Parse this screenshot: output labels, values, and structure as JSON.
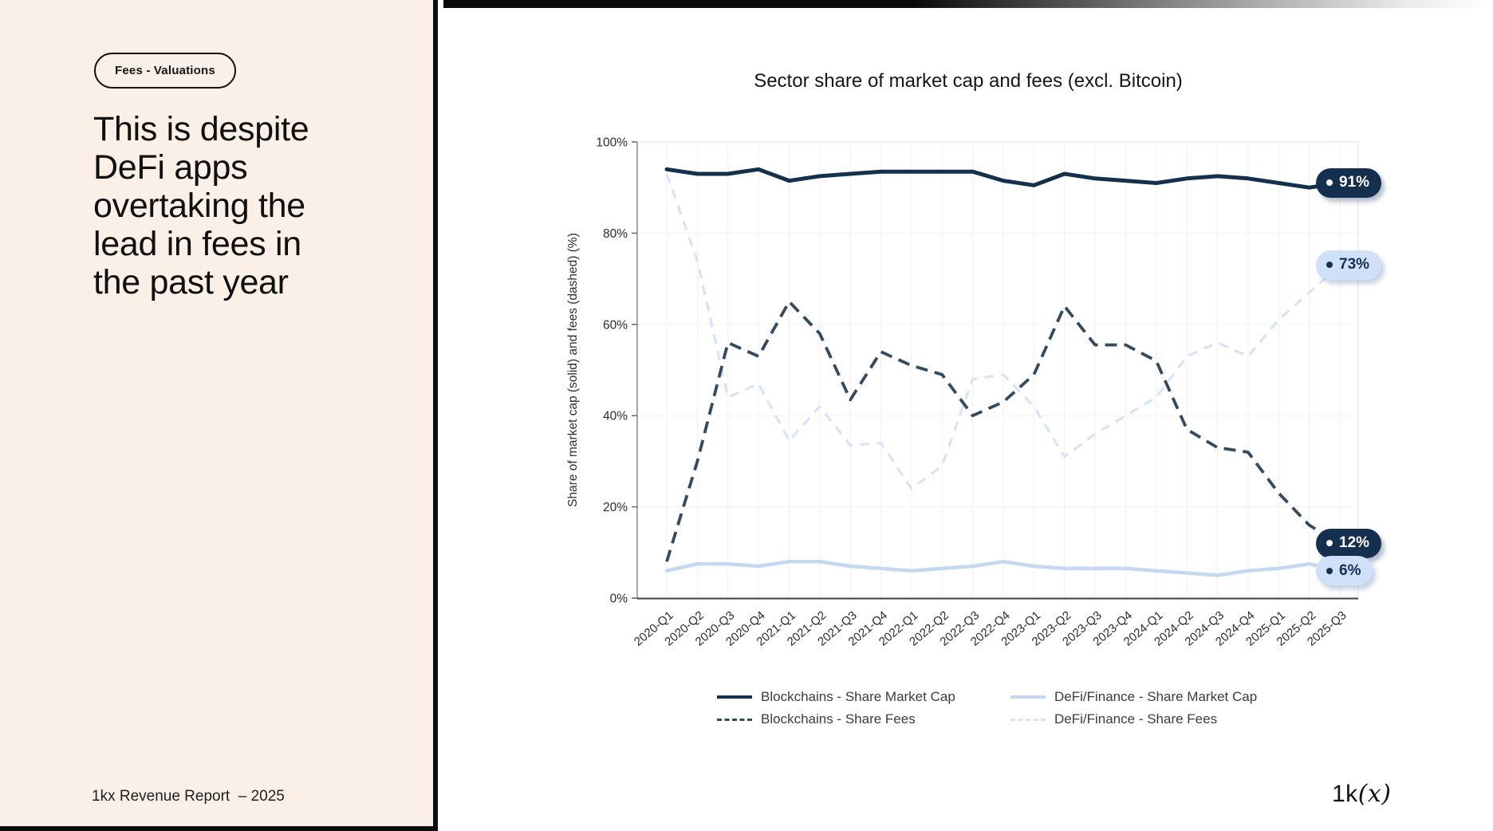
{
  "left_panel": {
    "badge": "Fees - Valuations",
    "heading": "This is despite\nDeFi apps\novertaking the\nlead in fees in\nthe past year",
    "footer": "1kx Revenue Report  – 2025"
  },
  "logo": {
    "prefix": "1k",
    "suffix": "(x)"
  },
  "chart_data": {
    "type": "line",
    "title": "Sector share of market cap and fees (excl. Bitcoin)",
    "ylabel": "Share of market cap (solid) and fees (dashed) (%)",
    "ylim": [
      0,
      100
    ],
    "yticks": [
      0,
      20,
      40,
      60,
      80,
      100
    ],
    "ytick_suffix": "%",
    "grid": true,
    "legend_position": "bottom",
    "categories": [
      "2020-Q1",
      "2020-Q2",
      "2020-Q3",
      "2020-Q4",
      "2021-Q1",
      "2021-Q2",
      "2021-Q3",
      "2021-Q4",
      "2022-Q1",
      "2022-Q2",
      "2022-Q3",
      "2022-Q4",
      "2023-Q1",
      "2023-Q2",
      "2023-Q3",
      "2023-Q4",
      "2024-Q1",
      "2024-Q2",
      "2024-Q3",
      "2024-Q4",
      "2025-Q1",
      "2025-Q2",
      "2025-Q3"
    ],
    "series": [
      {
        "name": "DeFi/Finance - Share Fees",
        "style": "dashed",
        "color_key": "light_dashed",
        "values": [
          93,
          74,
          44,
          47,
          34.5,
          42,
          33.5,
          34,
          24,
          29,
          48,
          49,
          42,
          31,
          36,
          40,
          44,
          53,
          56,
          53,
          61,
          67,
          73
        ]
      },
      {
        "name": "DeFi/Finance - Share Market Cap",
        "style": "solid",
        "color_key": "light",
        "values": [
          6,
          7.5,
          7.5,
          7,
          8,
          8,
          7,
          6.5,
          6,
          6.5,
          7,
          8,
          7,
          6.5,
          6.5,
          6.5,
          6,
          5.5,
          5,
          6,
          6.5,
          7.5,
          6
        ]
      },
      {
        "name": "Blockchains - Share Fees",
        "style": "dashed",
        "color_key": "dark_dashed",
        "values": [
          8,
          30,
          56,
          53,
          65,
          58,
          43.5,
          54,
          51,
          49,
          40,
          43,
          49,
          64,
          55.5,
          55.5,
          52,
          37,
          33,
          32,
          23,
          16,
          12
        ]
      },
      {
        "name": "Blockchains - Share Market Cap",
        "style": "solid",
        "color_key": "dark",
        "values": [
          94,
          93,
          93,
          94,
          91.5,
          92.5,
          93,
          93.5,
          93.5,
          93.5,
          93.5,
          91.5,
          90.5,
          93,
          92,
          91.5,
          91,
          92,
          92.5,
          92,
          91,
          90,
          91
        ]
      }
    ],
    "legend_order": [
      3,
      1,
      2,
      0
    ],
    "end_labels": [
      {
        "text": "91%",
        "value": 91,
        "variant": "dark"
      },
      {
        "text": "73%",
        "value": 73,
        "variant": "light"
      },
      {
        "text": "12%",
        "value": 12,
        "variant": "dark"
      },
      {
        "text": "6%",
        "value": 6,
        "variant": "light"
      }
    ],
    "colors": {
      "dark": "#15304c",
      "dark_dashed": "#344a5e",
      "light": "#c5d8f1",
      "light_dashed": "#d9e3f6",
      "axis": "#3f3f3f",
      "axis_left": "#8a8a8a",
      "grid_v": "#f2f0ee",
      "grid_h": "#f5f4f3",
      "border_light": "#e7e5e3",
      "tick_text": "#2b2b2b"
    }
  }
}
